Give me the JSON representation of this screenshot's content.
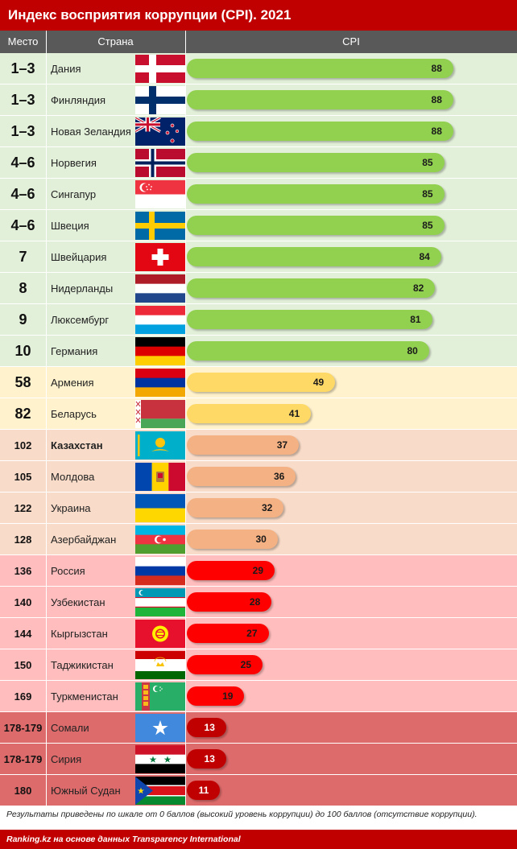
{
  "title": "Индекс восприятия коррупции (CPI). 2021",
  "headers": {
    "rank": "Место",
    "country": "Страна",
    "value": "CPI"
  },
  "footnote": "Результаты приведены по шкале от 0 баллов (высокий уровень коррупции) до 100 баллов (отсутствие коррупции).",
  "source": "Ranking.kz на основе данных Transparency International",
  "colors": {
    "title_bg": "#c00000",
    "header_bg": "#595959",
    "band_green_bg": "#e2efd9",
    "band_yellow_bg": "#fff2cc",
    "band_peach_bg": "#f8dbc8",
    "band_pink_bg": "#ffbdbd",
    "band_darkred_bg": "#de6b6b",
    "bar_green": "#92d050",
    "bar_yellow": "#ffd966",
    "bar_peach": "#f4b183",
    "bar_red": "#ff0000",
    "bar_darkred": "#c00000"
  },
  "chart_data": {
    "type": "bar",
    "orientation": "horizontal",
    "title": "Индекс восприятия коррупции (CPI). 2021",
    "xlim": [
      0,
      100
    ],
    "grid": false,
    "rows": [
      {
        "rank": "1–3",
        "country": "Дания",
        "value": 88,
        "band": "green",
        "flag": "denmark-flag-icon"
      },
      {
        "rank": "1–3",
        "country": "Финляндия",
        "value": 88,
        "band": "green",
        "flag": "finland-flag-icon"
      },
      {
        "rank": "1–3",
        "country": "Новая Зеландия",
        "value": 88,
        "band": "green",
        "flag": "new-zealand-flag-icon"
      },
      {
        "rank": "4–6",
        "country": "Норвегия",
        "value": 85,
        "band": "green",
        "flag": "norway-flag-icon"
      },
      {
        "rank": "4–6",
        "country": "Сингапур",
        "value": 85,
        "band": "green",
        "flag": "singapore-flag-icon"
      },
      {
        "rank": "4–6",
        "country": "Швеция",
        "value": 85,
        "band": "green",
        "flag": "sweden-flag-icon"
      },
      {
        "rank": "7",
        "country": "Швейцария",
        "value": 84,
        "band": "green",
        "flag": "switzerland-flag-icon"
      },
      {
        "rank": "8",
        "country": "Нидерланды",
        "value": 82,
        "band": "green",
        "flag": "netherlands-flag-icon"
      },
      {
        "rank": "9",
        "country": "Люксембург",
        "value": 81,
        "band": "green",
        "flag": "luxembourg-flag-icon"
      },
      {
        "rank": "10",
        "country": "Германия",
        "value": 80,
        "band": "green",
        "flag": "germany-flag-icon"
      },
      {
        "rank": "58",
        "country": "Армения",
        "value": 49,
        "band": "yellow",
        "flag": "armenia-flag-icon"
      },
      {
        "rank": "82",
        "country": "Беларусь",
        "value": 41,
        "band": "yellow",
        "flag": "belarus-flag-icon"
      },
      {
        "rank": "102",
        "country": "Казахстан",
        "value": 37,
        "band": "peach",
        "flag": "kazakhstan-flag-icon",
        "highlight": true
      },
      {
        "rank": "105",
        "country": "Молдова",
        "value": 36,
        "band": "peach",
        "flag": "moldova-flag-icon"
      },
      {
        "rank": "122",
        "country": "Украина",
        "value": 32,
        "band": "peach",
        "flag": "ukraine-flag-icon"
      },
      {
        "rank": "128",
        "country": "Азербайджан",
        "value": 30,
        "band": "peach",
        "flag": "azerbaijan-flag-icon"
      },
      {
        "rank": "136",
        "country": "Россия",
        "value": 29,
        "band": "pink",
        "flag": "russia-flag-icon"
      },
      {
        "rank": "140",
        "country": "Узбекистан",
        "value": 28,
        "band": "pink",
        "flag": "uzbekistan-flag-icon"
      },
      {
        "rank": "144",
        "country": "Кыргызстан",
        "value": 27,
        "band": "pink",
        "flag": "kyrgyzstan-flag-icon"
      },
      {
        "rank": "150",
        "country": "Таджикистан",
        "value": 25,
        "band": "pink",
        "flag": "tajikistan-flag-icon"
      },
      {
        "rank": "169",
        "country": "Туркменистан",
        "value": 19,
        "band": "pink",
        "flag": "turkmenistan-flag-icon"
      },
      {
        "rank": "178-179",
        "country": "Сомали",
        "value": 13,
        "band": "darkred",
        "flag": "somalia-flag-icon"
      },
      {
        "rank": "178-179",
        "country": "Сирия",
        "value": 13,
        "band": "darkred",
        "flag": "syria-flag-icon"
      },
      {
        "rank": "180",
        "country": "Южный Судан",
        "value": 11,
        "band": "darkred",
        "flag": "south-sudan-flag-icon"
      }
    ]
  }
}
